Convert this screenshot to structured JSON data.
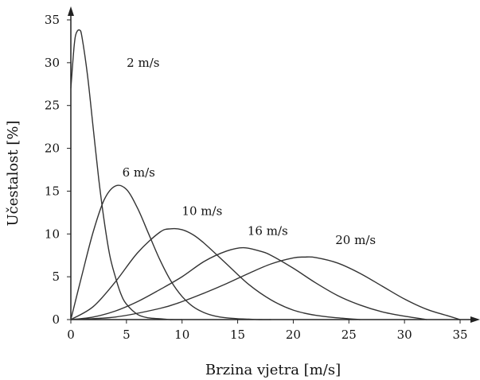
{
  "chart_data": {
    "type": "line",
    "xlabel": "Brzina vjetra [m/s]",
    "ylabel": "Učestalost [%]",
    "xlim": [
      0,
      35
    ],
    "ylim": [
      0,
      35
    ],
    "x_ticks": [
      0,
      5,
      10,
      15,
      20,
      25,
      30,
      35
    ],
    "y_ticks": [
      0,
      5,
      10,
      15,
      20,
      25,
      30,
      35
    ],
    "grid": false,
    "series": [
      {
        "name": "2 m/s",
        "x": [
          0,
          0.3,
          0.5,
          0.8,
          1.0,
          1.5,
          2.0,
          2.5,
          3.0,
          3.5,
          4.0,
          4.5,
          5.0,
          6.0,
          7.0,
          8.0,
          9.0,
          10.0
        ],
        "y": [
          27,
          32,
          33.5,
          33.8,
          33,
          28.5,
          22.5,
          16.5,
          11.5,
          7.5,
          5,
          3,
          1.8,
          0.6,
          0.2,
          0.1,
          0,
          0
        ]
      },
      {
        "name": "6 m/s",
        "x": [
          0,
          1,
          2,
          3,
          4,
          5,
          6,
          7,
          8,
          9,
          10,
          11,
          12,
          13,
          14,
          15,
          16,
          17,
          18
        ],
        "y": [
          0,
          5.2,
          10.2,
          14,
          15.6,
          15.2,
          13,
          10,
          7,
          4.5,
          2.7,
          1.5,
          0.8,
          0.4,
          0.2,
          0.1,
          0.05,
          0,
          0
        ]
      },
      {
        "name": "10 m/s",
        "x": [
          0,
          2,
          4,
          6,
          8,
          9,
          10,
          11,
          12,
          14,
          16,
          18,
          20,
          22,
          24,
          26
        ],
        "y": [
          0,
          1.5,
          4.4,
          7.8,
          10.2,
          10.6,
          10.5,
          9.9,
          8.9,
          6.5,
          4.1,
          2.3,
          1.1,
          0.5,
          0.2,
          0
        ]
      },
      {
        "name": "16 m/s",
        "x": [
          0,
          2,
          4,
          6,
          8,
          10,
          12,
          14,
          15.5,
          17,
          18,
          20,
          22,
          24,
          26,
          28,
          30,
          32
        ],
        "y": [
          0,
          0.3,
          1.0,
          2.1,
          3.5,
          5.0,
          6.8,
          8.0,
          8.4,
          8.0,
          7.5,
          6.0,
          4.3,
          2.8,
          1.7,
          0.9,
          0.4,
          0
        ]
      },
      {
        "name": "20 m/s",
        "x": [
          0,
          4,
          8,
          10,
          12,
          14,
          16,
          18,
          20,
          21,
          22,
          24,
          26,
          28,
          30,
          32,
          34,
          35
        ],
        "y": [
          0,
          0.3,
          1.3,
          2.1,
          3.1,
          4.2,
          5.4,
          6.5,
          7.2,
          7.3,
          7.25,
          6.6,
          5.4,
          3.9,
          2.4,
          1.2,
          0.4,
          0
        ]
      }
    ],
    "annotations": [
      {
        "text": "2 m/s",
        "x": 6.5,
        "y": 29.5
      },
      {
        "text": "6 m/s",
        "x": 6.1,
        "y": 16.7
      },
      {
        "text": "10 m/s",
        "x": 11.8,
        "y": 12.2
      },
      {
        "text": "16 m/s",
        "x": 17.7,
        "y": 9.9
      },
      {
        "text": "20 m/s",
        "x": 25.6,
        "y": 8.8
      }
    ]
  }
}
